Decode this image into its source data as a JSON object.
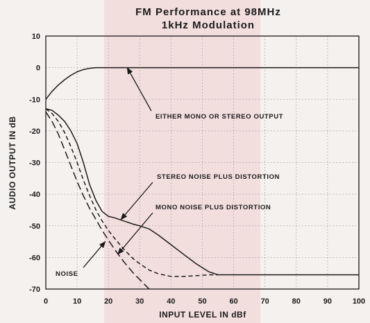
{
  "chart_data": {
    "type": "line",
    "title_lines": [
      "FM Performance at 98MHz",
      "1kHz Modulation"
    ],
    "xlabel": "INPUT LEVEL IN dBf",
    "ylabel": "AUDIO OUTPUT IN dB",
    "xlim": [
      0,
      100
    ],
    "ylim": [
      -70,
      10
    ],
    "xticks": [
      0,
      10,
      20,
      30,
      40,
      50,
      60,
      70,
      80,
      90,
      100
    ],
    "yticks": [
      10,
      0,
      -10,
      -20,
      -30,
      -40,
      -50,
      -60,
      -70
    ],
    "grid": true,
    "series": [
      {
        "style": "solid",
        "x": [
          0,
          2,
          4,
          6,
          8,
          10,
          12,
          14,
          16,
          18,
          20,
          25,
          30,
          40,
          50,
          60,
          70,
          80,
          90,
          100
        ],
        "y": [
          -10,
          -7.5,
          -5.5,
          -3.8,
          -2.4,
          -1.3,
          -0.6,
          -0.2,
          0,
          0,
          0,
          0,
          0,
          0,
          0,
          0,
          0,
          0,
          0,
          0
        ]
      },
      {
        "style": "solid",
        "x": [
          0,
          2,
          4,
          6,
          8,
          10,
          12,
          14,
          16,
          18,
          20,
          22,
          25,
          28,
          30,
          33,
          36,
          40,
          44,
          48,
          52,
          55,
          60,
          70,
          80,
          90,
          100
        ],
        "y": [
          -13,
          -13.5,
          -15,
          -17,
          -20,
          -24,
          -30,
          -37,
          -42,
          -45.5,
          -47,
          -47.5,
          -48.5,
          -49.5,
          -50,
          -51,
          -53,
          -56,
          -59,
          -62,
          -64.5,
          -65.5,
          -65.5,
          -65.5,
          -65.5,
          -65.5,
          -65.5
        ]
      },
      {
        "style": "short-dash",
        "x": [
          0,
          2,
          4,
          6,
          8,
          10,
          12,
          14,
          16,
          18,
          20,
          22,
          25,
          28,
          30,
          33,
          36,
          40,
          44,
          48,
          52,
          55
        ],
        "y": [
          -13,
          -14.5,
          -17,
          -20.5,
          -25,
          -30,
          -35.5,
          -40.5,
          -45,
          -48.5,
          -51.5,
          -54,
          -57.5,
          -60.5,
          -62,
          -64,
          -65.2,
          -66,
          -66,
          -65.8,
          -65.5,
          -65.5
        ]
      },
      {
        "style": "long-dash",
        "x": [
          0,
          2,
          4,
          6,
          8,
          10,
          12,
          14,
          16,
          18,
          20,
          22,
          25,
          28,
          30,
          33
        ],
        "y": [
          -14,
          -17,
          -21,
          -26,
          -31,
          -36,
          -40.5,
          -44.5,
          -48,
          -51.5,
          -54.5,
          -57.5,
          -61.5,
          -65,
          -67,
          -70
        ]
      }
    ],
    "annotations": [
      {
        "text": "EITHER MONO OR STEREO OUTPUT",
        "arrow_to": [
          26,
          0
        ]
      },
      {
        "text": "STEREO NOISE PLUS DISTORTION",
        "arrow_to": [
          24,
          -48
        ]
      },
      {
        "text": "MONO NOISE PLUS DISTORTION",
        "arrow_to": [
          23,
          -59
        ]
      },
      {
        "text": "NOISE",
        "arrow_to": [
          19,
          -55
        ]
      }
    ]
  }
}
